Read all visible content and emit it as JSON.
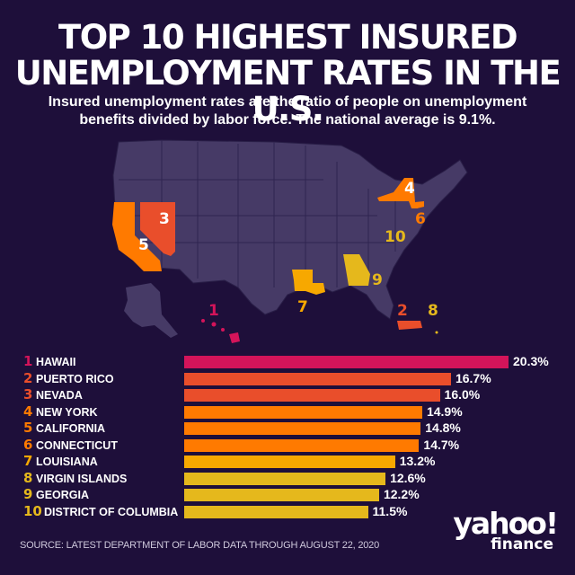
{
  "header": {
    "title_line1": "TOP 10 HIGHEST INSURED",
    "title_line2": "UNEMPLOYMENT RATES IN THE U.S.",
    "subtitle_line1": "Insured unemployment rates are the ratio of people on unemployment",
    "subtitle_line2": "benefits divided by labor force. The national average is 9.1%."
  },
  "colors": {
    "background": "#1e0f3a",
    "map_states": "#463a66",
    "rank1": "#d4145a",
    "rank2_3": "#e94e2b",
    "rank4_6": "#ff7a00",
    "rank7": "#f7a800",
    "rank8_10": "#e5b81c"
  },
  "map": {
    "labels": [
      {
        "rank": "1",
        "state": "Hawaii"
      },
      {
        "rank": "2",
        "state": "Puerto Rico"
      },
      {
        "rank": "3",
        "state": "Nevada"
      },
      {
        "rank": "4",
        "state": "New York"
      },
      {
        "rank": "5",
        "state": "California"
      },
      {
        "rank": "6",
        "state": "Connecticut"
      },
      {
        "rank": "7",
        "state": "Louisiana"
      },
      {
        "rank": "8",
        "state": "Virgin Islands"
      },
      {
        "rank": "9",
        "state": "Georgia"
      },
      {
        "rank": "10",
        "state": "District of Columbia"
      }
    ]
  },
  "chart_data": {
    "type": "bar",
    "orientation": "horizontal",
    "title": "TOP 10 HIGHEST INSURED UNEMPLOYMENT RATES IN THE U.S.",
    "subtitle": "Insured unemployment rates are the ratio of people on unemployment benefits divided by labor force. The national average is 9.1%.",
    "categories": [
      "HAWAII",
      "PUERTO RICO",
      "NEVADA",
      "NEW YORK",
      "CALIFORNIA",
      "CONNECTICUT",
      "LOUISIANA",
      "VIRGIN ISLANDS",
      "GEORGIA",
      "DISTRICT OF COLUMBIA"
    ],
    "ranks": [
      "1",
      "2",
      "3",
      "4",
      "5",
      "6",
      "7",
      "8",
      "9",
      "10"
    ],
    "values": [
      20.3,
      16.7,
      16.0,
      14.9,
      14.8,
      14.7,
      13.2,
      12.6,
      12.2,
      11.5
    ],
    "value_labels": [
      "20.3%",
      "16.7%",
      "16.0%",
      "14.9%",
      "14.8%",
      "14.7%",
      "13.2%",
      "12.6%",
      "12.2%",
      "11.5%"
    ],
    "bar_colors": [
      "#d4145a",
      "#e94e2b",
      "#e94e2b",
      "#ff7a00",
      "#ff7a00",
      "#ff7a00",
      "#f7a800",
      "#e5b81c",
      "#e5b81c",
      "#e5b81c"
    ],
    "national_average": 9.1,
    "xlabel": "",
    "ylabel": "",
    "grid": false,
    "legend": "none"
  },
  "footer": {
    "source": "SOURCE: LATEST DEPARTMENT OF LABOR DATA THROUGH AUGUST 22, 2020",
    "logo_top": "yahoo!",
    "logo_bottom": "finance"
  }
}
